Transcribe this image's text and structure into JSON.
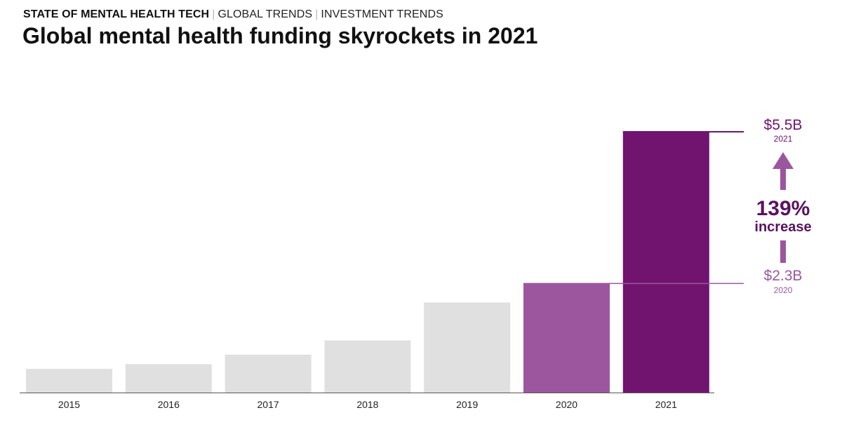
{
  "header": {
    "breadcrumb": [
      "STATE OF MENTAL HEALTH TECH",
      "GLOBAL TRENDS",
      "INVESTMENT TRENDS"
    ],
    "title": "Global mental health funding skyrockets in 2021"
  },
  "colors": {
    "muted": "#e0e0e0",
    "year_2020": "#9c569e",
    "year_2021": "#701470",
    "axis": "#555555"
  },
  "chart_data": {
    "type": "bar",
    "title": "Global mental health funding skyrockets in 2021",
    "categories": [
      "2015",
      "2016",
      "2017",
      "2018",
      "2019",
      "2020",
      "2021"
    ],
    "values": [
      0.5,
      0.6,
      0.8,
      1.1,
      1.9,
      2.3,
      5.5
    ],
    "unit": "$B",
    "ylim": [
      0,
      5.5
    ],
    "highlight_categories": [
      "2020",
      "2021"
    ],
    "annotations": {
      "top_value": "$5.5B",
      "top_year": "2021",
      "bottom_value": "$2.3B",
      "bottom_year": "2020",
      "change": "139%",
      "change_label": "increase"
    }
  }
}
